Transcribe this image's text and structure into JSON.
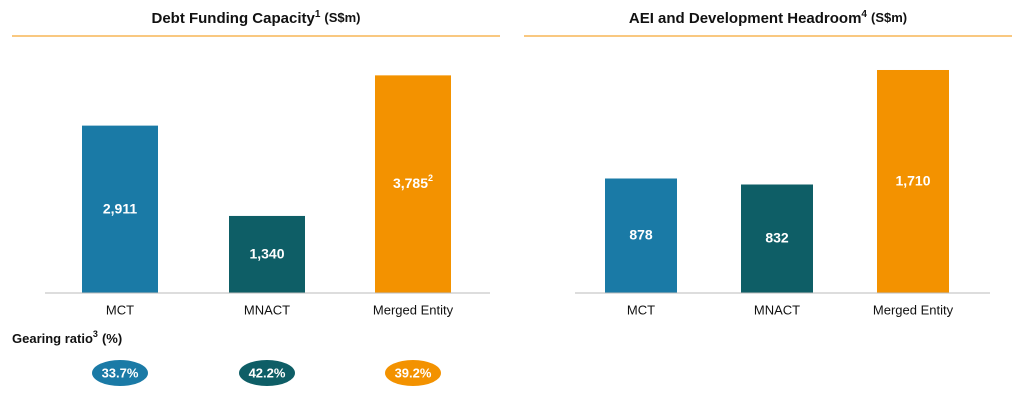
{
  "chart_data": [
    {
      "type": "bar",
      "title": "Debt Funding Capacity",
      "title_superscript": "1",
      "unit": "(S$m)",
      "categories": [
        "MCT",
        "MNACT",
        "Merged Entity"
      ],
      "values": [
        2911,
        1340,
        3785
      ],
      "value_labels": [
        "2,911",
        "1,340",
        "3,785"
      ],
      "value_label_superscripts": [
        null,
        null,
        "2"
      ],
      "colors": [
        "#1a7aa6",
        "#0e5e66",
        "#f39200"
      ],
      "ylim": [
        0,
        4400
      ],
      "gearing": {
        "label": "Gearing ratio",
        "superscript": "3",
        "unit": "(%)",
        "values": [
          33.7,
          42.2,
          39.2
        ],
        "value_labels": [
          "33.7%",
          "42.2%",
          "39.2%"
        ]
      }
    },
    {
      "type": "bar",
      "title": "AEI and Development Headroom",
      "title_superscript": "4",
      "unit": "(S$m)",
      "categories": [
        "MCT",
        "MNACT",
        "Merged Entity"
      ],
      "values": [
        878,
        832,
        1710
      ],
      "value_labels": [
        "878",
        "832",
        "1,710"
      ],
      "colors": [
        "#1a7aa6",
        "#0e5e66",
        "#f39200"
      ],
      "ylim": [
        0,
        1940
      ]
    }
  ]
}
